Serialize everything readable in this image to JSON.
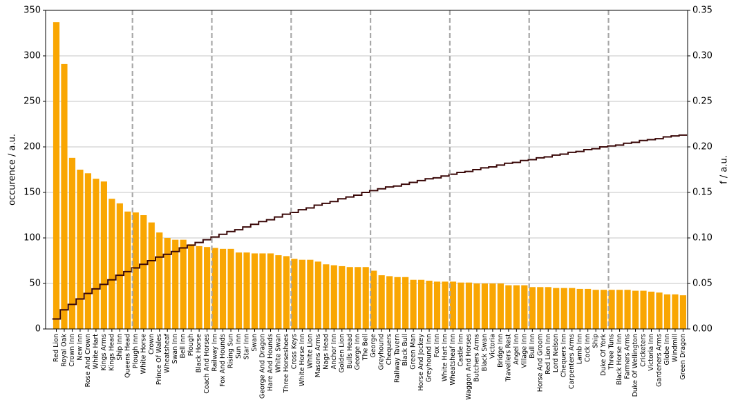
{
  "chart_data": {
    "type": "bar",
    "ylabel": "occurence / a.u.",
    "y2label": "f / a.u.",
    "categories": [
      "Red Lion",
      "Royal Oak",
      "Crown Inn",
      "New Inn",
      "Rose And Crown",
      "White Hart",
      "Kings Arms",
      "Kings Head",
      "Ship Inn",
      "Queens Head",
      "Plough Inn",
      "White Horse",
      "Crown",
      "Prince Of Wales",
      "Wheatsheaf",
      "Swan Inn",
      "Bell Inn",
      "Plough",
      "Black Horse",
      "Coach And Horses",
      "Railway Inn",
      "Fox And Hounds",
      "Rising Sun",
      "Sun Inn",
      "Star Inn",
      "Swan",
      "George And Dragon",
      "Hare And Hounds",
      "White Swan",
      "Three Horseshoes",
      "Cross Keys",
      "White Horse Inn",
      "White Lion",
      "Masons Arms",
      "Nags Head",
      "Anchor Inn",
      "Golden Lion",
      "Bulls Head",
      "George Inn",
      "The Bell",
      "George",
      "Greyhound",
      "Chequers",
      "Railway Tavern",
      "Black Bull",
      "Green Man",
      "Horse And Jockey",
      "Greyhound Inn",
      "Fox Inn",
      "White Hart Inn",
      "Wheatsheaf Inn",
      "Castle Inn",
      "Waggon And Horses",
      "Butchers Arms",
      "Black Swan",
      "Victoria",
      "Bridge Inn",
      "Travellers Rest",
      "Angel Inn",
      "Village Inn",
      "Bull Inn",
      "Horse And Groom",
      "Red Lion Inn",
      "Lord Nelson",
      "Chequers Inn",
      "Carpenters Arms",
      "Lamb Inn",
      "Cock Inn",
      "Ship",
      "Duke Of York",
      "Three Tuns",
      "Black Horse Inn",
      "Farmers Arms",
      "Duke Of Wellington",
      "Cricketers",
      "Victoria Inn",
      "Gardeners Arms",
      "Globe Inn",
      "Windmill",
      "Green Dragon"
    ],
    "series": [
      {
        "type": "bar",
        "color": "#f9a602",
        "values": [
          337,
          291,
          188,
          175,
          171,
          165,
          162,
          143,
          138,
          129,
          128,
          125,
          117,
          106,
          100,
          98,
          98,
          93,
          91,
          90,
          89,
          88,
          88,
          84,
          84,
          83,
          83,
          83,
          81,
          80,
          77,
          76,
          76,
          74,
          71,
          70,
          69,
          68,
          68,
          68,
          64,
          59,
          58,
          57,
          57,
          54,
          54,
          53,
          52,
          52,
          52,
          51,
          51,
          50,
          50,
          50,
          50,
          48,
          48,
          48,
          46,
          46,
          46,
          45,
          45,
          45,
          44,
          44,
          43,
          43,
          43,
          43,
          43,
          42,
          42,
          41,
          40,
          38,
          38,
          37
        ]
      },
      {
        "type": "step",
        "color": "#3a0808",
        "axis": "y2",
        "values": [
          0.011,
          0.021,
          0.027,
          0.033,
          0.039,
          0.044,
          0.049,
          0.054,
          0.059,
          0.063,
          0.067,
          0.071,
          0.075,
          0.079,
          0.082,
          0.085,
          0.089,
          0.092,
          0.095,
          0.098,
          0.101,
          0.104,
          0.107,
          0.109,
          0.112,
          0.115,
          0.118,
          0.12,
          0.123,
          0.126,
          0.128,
          0.131,
          0.133,
          0.136,
          0.138,
          0.14,
          0.143,
          0.145,
          0.147,
          0.15,
          0.152,
          0.154,
          0.156,
          0.157,
          0.159,
          0.161,
          0.163,
          0.165,
          0.166,
          0.168,
          0.17,
          0.172,
          0.173,
          0.175,
          0.177,
          0.178,
          0.18,
          0.182,
          0.183,
          0.185,
          0.186,
          0.188,
          0.189,
          0.191,
          0.192,
          0.194,
          0.195,
          0.197,
          0.198,
          0.2,
          0.201,
          0.202,
          0.204,
          0.205,
          0.207,
          0.208,
          0.209,
          0.211,
          0.212,
          0.213
        ]
      }
    ],
    "vlines": [
      9.6,
      19.6,
      29.6,
      39.6,
      49.6,
      59.6,
      69.6
    ],
    "ylim": [
      0,
      350
    ],
    "yticks": [
      0,
      50,
      100,
      150,
      200,
      250,
      300,
      350
    ],
    "y2lim": [
      0,
      0.35
    ],
    "y2ticks": [
      {
        "value": 0,
        "label": "0.00"
      },
      {
        "value": 0.05,
        "label": "0.05"
      },
      {
        "value": 0.1,
        "label": "0.10"
      },
      {
        "value": 0.15,
        "label": "0.15"
      },
      {
        "value": 0.2,
        "label": "0.20"
      },
      {
        "value": 0.25,
        "label": "0.25"
      },
      {
        "value": 0.3,
        "label": "0.30"
      },
      {
        "value": 0.35,
        "label": "0.35"
      }
    ],
    "grid": true
  }
}
